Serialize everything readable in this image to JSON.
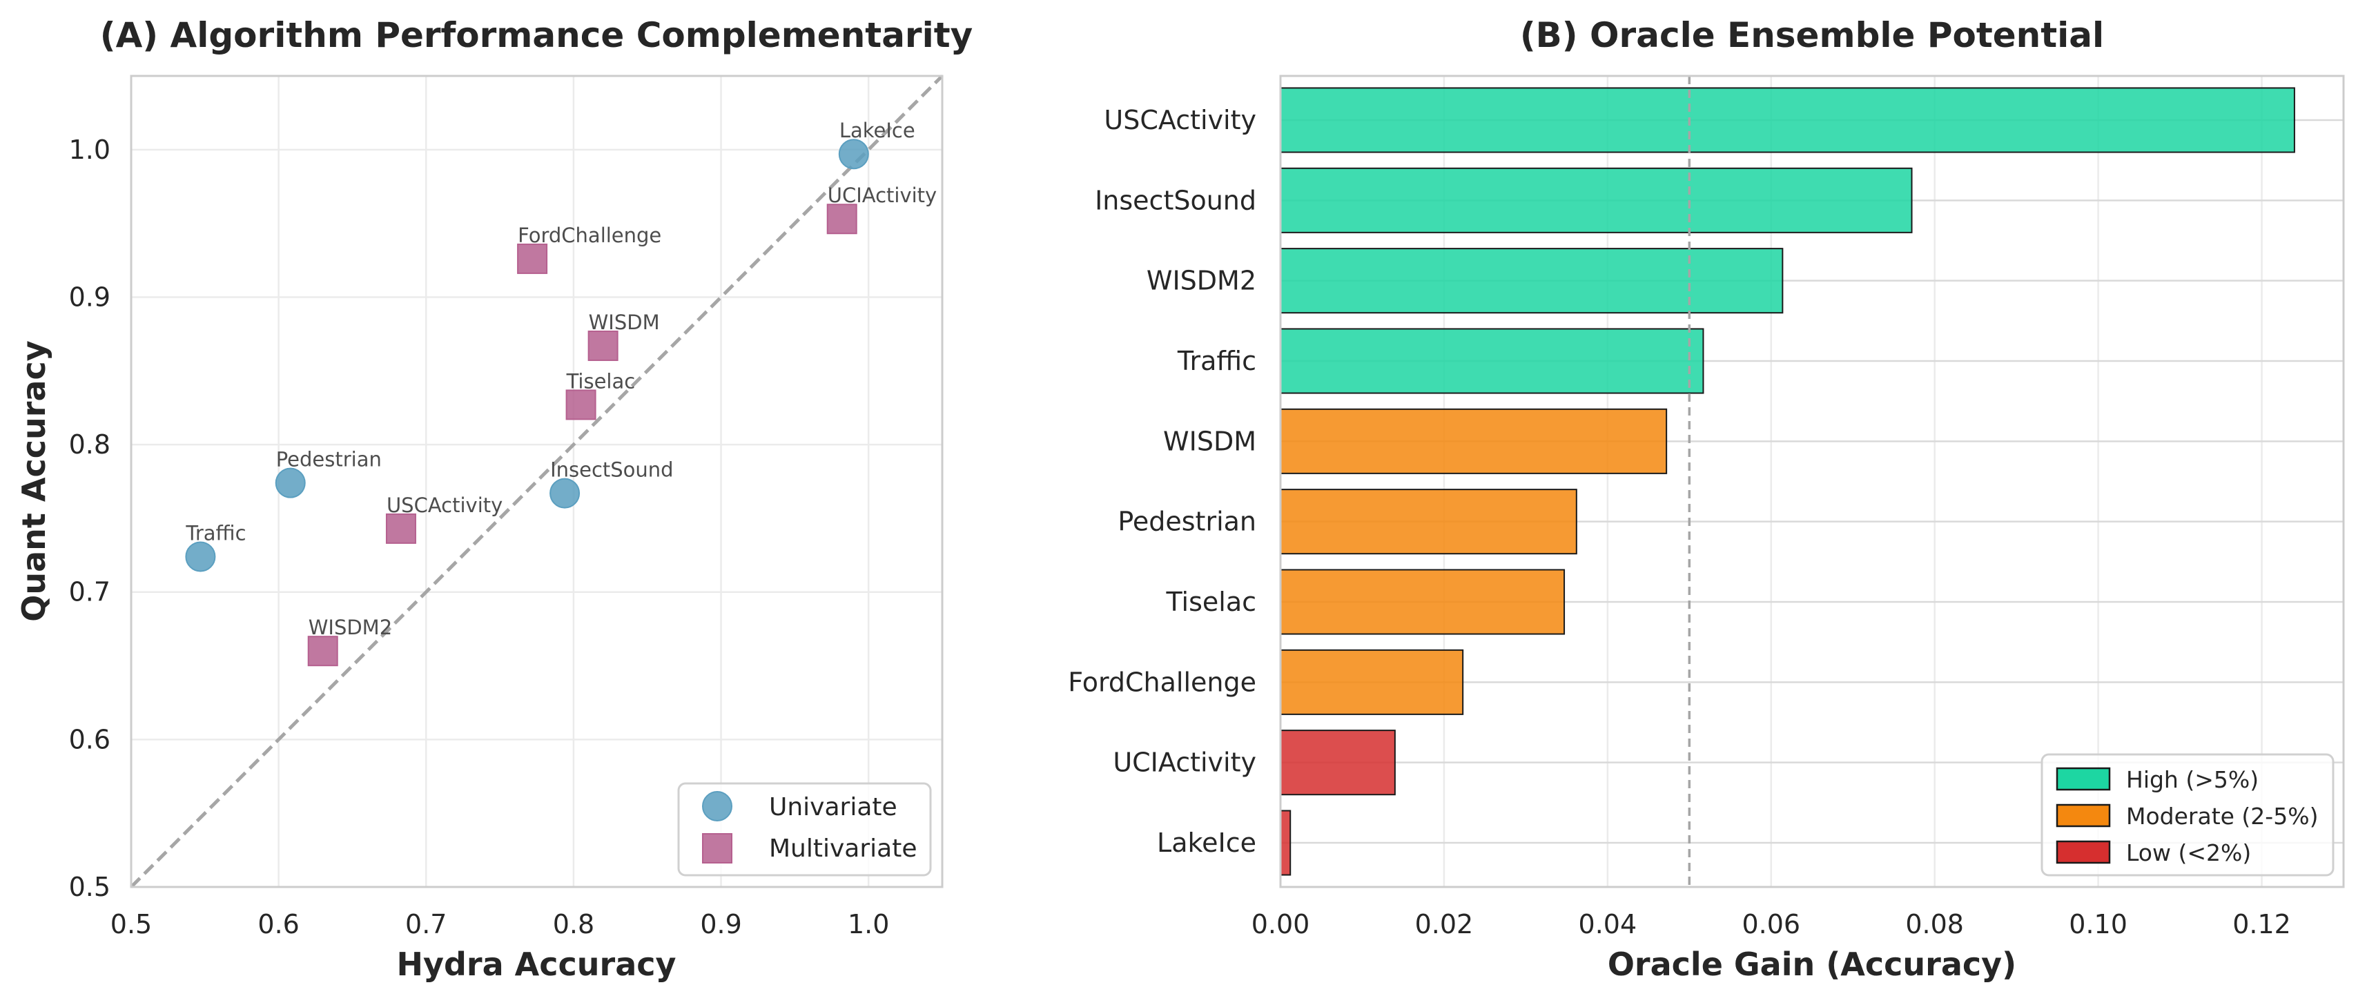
{
  "chart_data": [
    {
      "type": "scatter",
      "title": "(A) Algorithm Performance Complementarity",
      "xlabel": "Hydra Accuracy",
      "ylabel": "Quant Accuracy",
      "xlim": [
        0.5,
        1.05
      ],
      "ylim": [
        0.5,
        1.05
      ],
      "xticks": [
        "0.5",
        "0.6",
        "0.7",
        "0.8",
        "0.9",
        "1.0"
      ],
      "yticks": [
        "0.5",
        "0.6",
        "0.7",
        "0.8",
        "0.9",
        "1.0"
      ],
      "grid": true,
      "diagonal": true,
      "legend_position": "bottom-right",
      "series": [
        {
          "name": "Univariate",
          "marker": "circle",
          "color": "#5b9fc0",
          "points": [
            {
              "label": "LakeIce",
              "x": 0.99,
              "y": 0.997
            },
            {
              "label": "Pedestrian",
              "x": 0.608,
              "y": 0.774
            },
            {
              "label": "InsectSound",
              "x": 0.794,
              "y": 0.767
            },
            {
              "label": "Traffic",
              "x": 0.547,
              "y": 0.724
            }
          ]
        },
        {
          "name": "Multivariate",
          "marker": "square",
          "color": "#b5608f",
          "points": [
            {
              "label": "UCIActivity",
              "x": 0.982,
              "y": 0.953
            },
            {
              "label": "FordChallenge",
              "x": 0.772,
              "y": 0.926
            },
            {
              "label": "WISDM",
              "x": 0.82,
              "y": 0.867
            },
            {
              "label": "Tiselac",
              "x": 0.805,
              "y": 0.827
            },
            {
              "label": "USCActivity",
              "x": 0.683,
              "y": 0.743
            },
            {
              "label": "WISDM2",
              "x": 0.63,
              "y": 0.66
            }
          ]
        }
      ]
    },
    {
      "type": "bar",
      "orientation": "horizontal",
      "title": "(B) Oracle Ensemble Potential",
      "xlabel": "Oracle Gain (Accuracy)",
      "ylabel": "",
      "xlim": [
        0,
        0.13
      ],
      "xticks": [
        "0.00",
        "0.02",
        "0.04",
        "0.06",
        "0.08",
        "0.10",
        "0.12"
      ],
      "reference_line": 0.05,
      "grid": true,
      "legend_position": "bottom-right",
      "categories": [
        "USCActivity",
        "InsectSound",
        "WISDM2",
        "Traffic",
        "WISDM",
        "Pedestrian",
        "Tiselac",
        "FordChallenge",
        "UCIActivity",
        "LakeIce"
      ],
      "values": [
        0.124,
        0.0772,
        0.0614,
        0.0517,
        0.0472,
        0.0362,
        0.0347,
        0.0223,
        0.014,
        0.0012
      ],
      "groups": [
        "high",
        "high",
        "high",
        "high",
        "moderate",
        "moderate",
        "moderate",
        "moderate",
        "low",
        "low"
      ],
      "legend": [
        {
          "key": "high",
          "label": "High (>5%)",
          "color": "#1dd6a2"
        },
        {
          "key": "moderate",
          "label": "Moderate (2-5%)",
          "color": "#f4880f"
        },
        {
          "key": "low",
          "label": "Low (<2%)",
          "color": "#d62f2f"
        }
      ]
    }
  ]
}
